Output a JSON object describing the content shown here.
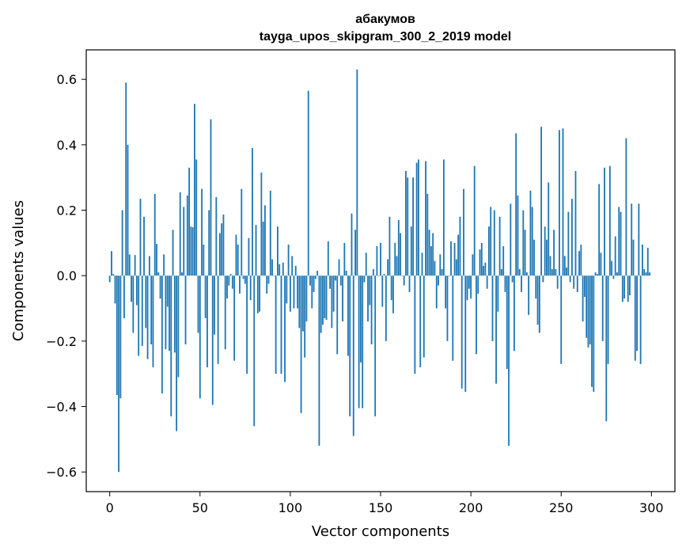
{
  "chart_data": {
    "type": "bar",
    "title": "абакумов",
    "subtitle": "tayga_upos_skipgram_300_2_2019 model",
    "xlabel": "Vector components",
    "ylabel": "Components values",
    "xlim": [
      -13,
      313
    ],
    "ylim": [
      -0.66,
      0.69
    ],
    "xticks": [
      0,
      50,
      100,
      150,
      200,
      250,
      300
    ],
    "xtick_labels": [
      "0",
      "50",
      "100",
      "150",
      "200",
      "250",
      "300"
    ],
    "yticks": [
      -0.6,
      -0.4,
      -0.2,
      0.0,
      0.2,
      0.4,
      0.6
    ],
    "ytick_labels": [
      "−0.6",
      "−0.4",
      "−0.2",
      "0.0",
      "0.2",
      "0.4",
      "0.6"
    ],
    "bar_color": "#1f77b4",
    "grid": false,
    "legend": "none",
    "x_start": 0,
    "values": [
      -0.02,
      0.075,
      0.005,
      -0.085,
      -0.365,
      -0.6,
      -0.375,
      0.2,
      -0.13,
      0.59,
      0.4,
      0.065,
      -0.08,
      -0.175,
      0.063,
      -0.09,
      -0.245,
      0.235,
      -0.215,
      0.18,
      -0.16,
      -0.255,
      0.06,
      -0.21,
      -0.28,
      0.25,
      0.097,
      0.01,
      -0.07,
      -0.36,
      0.065,
      -0.225,
      -0.095,
      -0.23,
      -0.43,
      0.14,
      -0.235,
      -0.475,
      -0.31,
      0.255,
      0.01,
      0.21,
      -0.21,
      0.245,
      0.33,
      0.15,
      0.148,
      0.525,
      0.355,
      -0.175,
      -0.375,
      0.265,
      0.095,
      -0.13,
      -0.28,
      0.2,
      0.478,
      -0.395,
      -0.18,
      0.24,
      -0.27,
      0.13,
      0.16,
      0.187,
      -0.225,
      -0.07,
      -0.03,
      0.005,
      -0.04,
      -0.26,
      0.125,
      0.095,
      -0.055,
      0.265,
      -0.01,
      -0.025,
      -0.3,
      0.115,
      -0.075,
      0.39,
      -0.46,
      0.155,
      -0.115,
      -0.11,
      0.315,
      0.165,
      0.215,
      -0.055,
      -0.025,
      0.26,
      0.05,
      0.0,
      -0.3,
      0.15,
      0.035,
      -0.3,
      0.04,
      -0.325,
      -0.085,
      0.095,
      -0.11,
      0.06,
      -0.1,
      0.03,
      -0.1,
      -0.16,
      -0.42,
      -0.17,
      -0.25,
      -0.14,
      0.565,
      -0.03,
      -0.1,
      -0.05,
      -0.01,
      0.015,
      -0.52,
      -0.175,
      -0.15,
      -0.13,
      -0.135,
      0.105,
      -0.04,
      -0.16,
      -0.11,
      -0.015,
      -0.24,
      0.05,
      -0.03,
      -0.14,
      0.1,
      0.015,
      -0.245,
      -0.43,
      0.19,
      -0.49,
      0.14,
      0.63,
      -0.405,
      -0.265,
      -0.405,
      -0.02,
      0.07,
      -0.14,
      -0.09,
      -0.21,
      0.02,
      -0.43,
      0.09,
      0.0,
      0.1,
      -0.095,
      0.005,
      -0.2,
      0.05,
      0.18,
      -0.075,
      -0.115,
      0.1,
      0.06,
      0.17,
      0.13,
      0.0,
      -0.03,
      0.32,
      0.3,
      -0.05,
      0.15,
      0.3,
      -0.3,
      0.345,
      0.355,
      -0.28,
      0.07,
      -0.25,
      0.35,
      0.25,
      0.14,
      0.09,
      0.13,
      0.045,
      -0.1,
      -0.03,
      0.065,
      0.02,
      0.355,
      -0.1,
      -0.2,
      0.0,
      0.105,
      -0.26,
      0.1,
      0.05,
      0.125,
      0.18,
      -0.345,
      0.265,
      -0.355,
      -0.075,
      -0.04,
      -0.07,
      0.065,
      0.335,
      -0.24,
      -0.055,
      0.08,
      0.1,
      0.03,
      0.04,
      -0.04,
      0.15,
      0.21,
      -0.2,
      0.2,
      -0.33,
      -0.11,
      0.18,
      0.02,
      0.09,
      -0.05,
      -0.285,
      -0.52,
      0.22,
      -0.02,
      -0.23,
      0.435,
      0.245,
      0.02,
      -0.05,
      0.2,
      0.14,
      0.01,
      -0.12,
      0.26,
      0.21,
      0.11,
      -0.07,
      -0.15,
      -0.175,
      0.455,
      -0.02,
      0.15,
      0.11,
      0.285,
      0.06,
      0.02,
      0.14,
      0.02,
      -0.04,
      0.445,
      -0.27,
      0.45,
      0.06,
      0.025,
      0.195,
      -0.02,
      0.235,
      -0.04,
      0.32,
      -0.05,
      0.075,
      0.095,
      -0.14,
      -0.065,
      -0.19,
      -0.22,
      -0.21,
      -0.34,
      -0.355,
      0.01,
      0.005,
      0.28,
      0.07,
      -0.2,
      0.33,
      -0.445,
      -0.27,
      0.335,
      0.045,
      -0.01,
      0.12,
      0.01,
      0.21,
      0.195,
      -0.08,
      -0.07,
      0.42,
      -0.08,
      -0.06,
      0.22,
      0.11,
      -0.26,
      -0.23,
      0.22,
      -0.27,
      0.095,
      0.02,
      0.01,
      0.085,
      0.01
    ]
  }
}
